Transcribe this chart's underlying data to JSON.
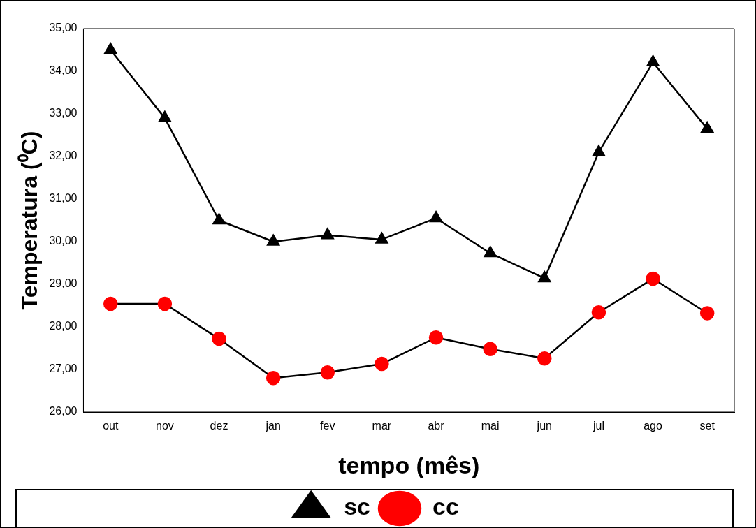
{
  "chart_data": {
    "type": "line",
    "xlabel": "tempo (mês)",
    "ylabel": "Temperatura (⁰C)",
    "categories": [
      "out",
      "nov",
      "dez",
      "jan",
      "fev",
      "mar",
      "abr",
      "mai",
      "jun",
      "jul",
      "ago",
      "set"
    ],
    "series": [
      {
        "name": "sc",
        "color": "#000000",
        "marker": "triangle",
        "values": [
          34.5,
          32.9,
          30.5,
          30.0,
          30.15,
          30.05,
          30.55,
          29.73,
          29.14,
          32.1,
          34.21,
          32.65
        ]
      },
      {
        "name": "cc",
        "color": "#ff0000",
        "marker": "circle",
        "values": [
          28.54,
          28.54,
          27.72,
          26.8,
          26.93,
          27.13,
          27.75,
          27.48,
          27.26,
          28.34,
          29.13,
          28.32
        ]
      }
    ],
    "ylim": [
      26,
      35
    ],
    "yticks": [
      {
        "value": 26,
        "label": "26,00"
      },
      {
        "value": 27,
        "label": "27,00"
      },
      {
        "value": 28,
        "label": "28,00"
      },
      {
        "value": 29,
        "label": "29,00"
      },
      {
        "value": 30,
        "label": "30,00"
      },
      {
        "value": 31,
        "label": "31,00"
      },
      {
        "value": 32,
        "label": "32,00"
      },
      {
        "value": 33,
        "label": "33,00"
      },
      {
        "value": 34,
        "label": "34,00"
      },
      {
        "value": 35,
        "label": "35,00"
      }
    ],
    "grid": false,
    "legend": "bottom",
    "line_style": "solid"
  }
}
